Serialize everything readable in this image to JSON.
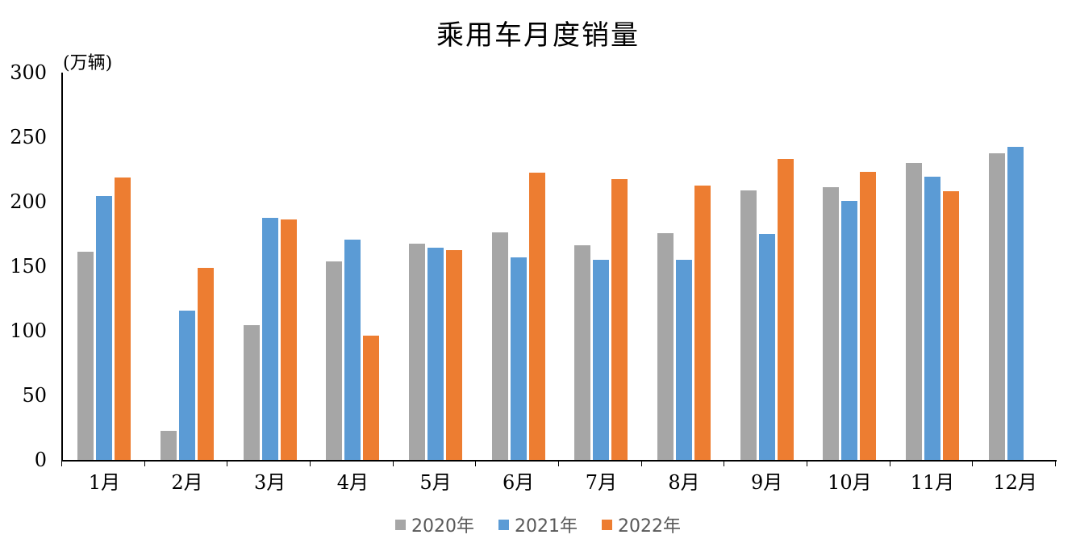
{
  "chart_data": {
    "type": "bar",
    "title": "乘用车月度销量",
    "ylabel": "(万辆)",
    "categories": [
      "1月",
      "2月",
      "3月",
      "4月",
      "5月",
      "6月",
      "7月",
      "8月",
      "9月",
      "10月",
      "11月",
      "12月"
    ],
    "series": [
      {
        "name": "2020年",
        "color": "#A6A6A6",
        "values": [
          161.4,
          22.4,
          104.3,
          153.6,
          167.4,
          176.4,
          166.5,
          175.5,
          208.8,
          211.0,
          229.7,
          237.5
        ]
      },
      {
        "name": "2021年",
        "color": "#5B9BD5",
        "values": [
          204.5,
          115.5,
          187.4,
          170.4,
          164.6,
          156.9,
          155.1,
          155.2,
          175.1,
          200.7,
          219.2,
          242.2
        ]
      },
      {
        "name": "2022年",
        "color": "#ED7D31",
        "values": [
          218.6,
          148.7,
          186.4,
          96.5,
          162.3,
          222.2,
          217.4,
          212.5,
          233.2,
          223.1,
          207.9,
          null
        ]
      }
    ],
    "ylim": [
      0,
      300
    ],
    "yticks": [
      0,
      50,
      100,
      150,
      200,
      250,
      300
    ],
    "grid": false,
    "legend_position": "bottom",
    "axis_color": "#000000",
    "legend_text_color": "#595959"
  }
}
